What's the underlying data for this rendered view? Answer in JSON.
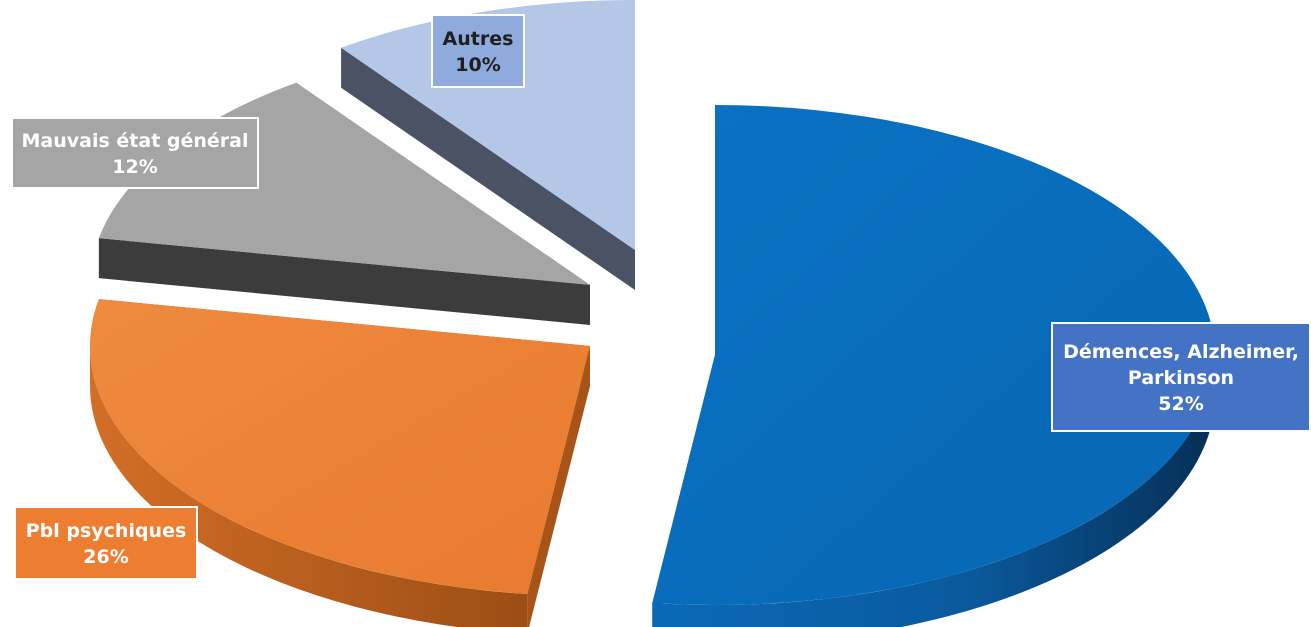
{
  "chart_data": {
    "type": "pie",
    "style": "3d-exploded",
    "legend": "none",
    "slices": [
      {
        "category": "Démences, Alzheimer, Parkinson",
        "label_lines": [
          "Démences, Alzheimer,",
          "Parkinson"
        ],
        "value": 52,
        "value_label": "52%",
        "color": "#0070C0",
        "label_bg": "#4472C4"
      },
      {
        "category": "Pbl psychiques",
        "label_lines": [
          "Pbl psychiques"
        ],
        "value": 26,
        "value_label": "26%",
        "color": "#ED7D31",
        "label_bg": "#ED7D31"
      },
      {
        "category": "Mauvais état général",
        "label_lines": [
          "Mauvais état général"
        ],
        "value": 12,
        "value_label": "12%",
        "color": "#A5A5A5",
        "label_bg": "#A5A5A5"
      },
      {
        "category": "Autres",
        "label_lines": [
          "Autres"
        ],
        "value": 10,
        "value_label": "10%",
        "color": "#B4C7E7",
        "label_bg": "#8FAADC"
      }
    ]
  }
}
